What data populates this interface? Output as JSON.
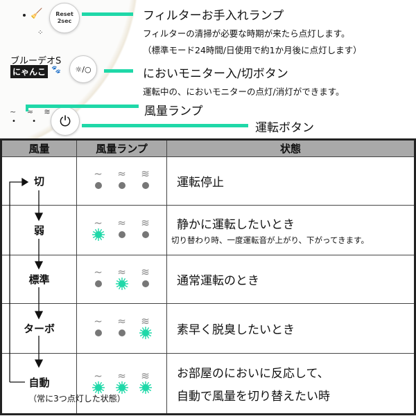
{
  "device": {
    "reset_label": "Reset\n2sec",
    "reset_line1": "Reset",
    "reset_line2": "2sec",
    "brand": "ブルーデオS",
    "badge": "にゃんこ",
    "icons": [
      "broom-icon",
      "odor-monitor-icon",
      "power-icon",
      "paw-icon"
    ]
  },
  "callouts": {
    "filter_title": "フィルターお手入れランプ",
    "filter_desc1": "フィルターの清掃が必要な時期が来たら点灯します。",
    "filter_desc2": "（標準モード24時間/日使用で約1か月後に点灯します）",
    "odor_title": "においモニター入/切ボタン",
    "odor_desc": "運転中の、においモニターの点灯/消灯ができます。",
    "wind_title": "風量ランプ",
    "run_title": "運転ボタン"
  },
  "colors": {
    "accent": "#1fd8a8",
    "header_bg": "#a9a9a9",
    "lamp_off": "#777777"
  },
  "table": {
    "headers": [
      "風量",
      "風量ランプ",
      "状態"
    ],
    "wave_glyphs": [
      "~",
      "≈",
      "≋"
    ],
    "rows": [
      {
        "level": "切",
        "lamps": [
          0,
          0,
          0
        ],
        "state": "運転停止"
      },
      {
        "level": "弱",
        "lamps": [
          1,
          0,
          0
        ],
        "state": "静かに運転したいとき",
        "note": "切り替わり時、一度運転音が上がり、下がってきます。"
      },
      {
        "level": "標準",
        "lamps": [
          0,
          1,
          0
        ],
        "state": "通常運転のとき"
      },
      {
        "level": "ターボ",
        "lamps": [
          0,
          0,
          1
        ],
        "state": "素早く脱臭したいとき"
      },
      {
        "level": "自動",
        "lamps": [
          1,
          1,
          1
        ],
        "state": "お部屋のにおいに反応して、",
        "state2": "自動で風量を切り替えたい時",
        "note": "（常に3つ点灯した状態）"
      }
    ]
  }
}
